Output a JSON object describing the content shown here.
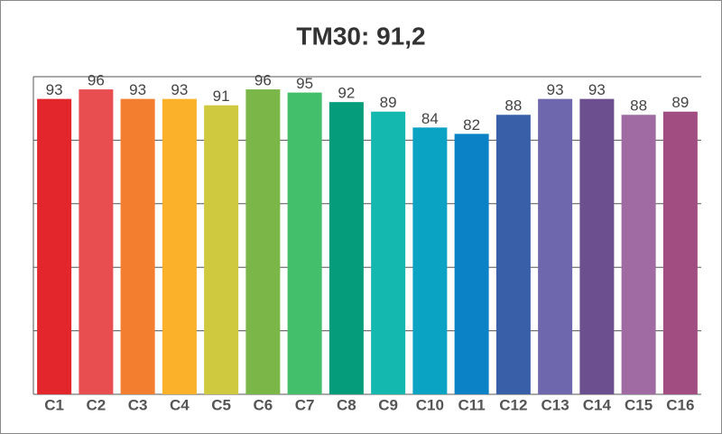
{
  "chart_data": {
    "type": "bar",
    "title": "TM30: 91,2",
    "categories": [
      "C1",
      "C2",
      "C3",
      "C4",
      "C5",
      "C6",
      "C7",
      "C8",
      "C9",
      "C10",
      "C11",
      "C12",
      "C13",
      "C14",
      "C15",
      "C16"
    ],
    "values": [
      93,
      96,
      93,
      93,
      91,
      96,
      95,
      92,
      89,
      84,
      82,
      88,
      93,
      93,
      88,
      89
    ],
    "colors": [
      "#e3262c",
      "#e84d50",
      "#f47e2f",
      "#fbb12a",
      "#cfc93f",
      "#7ab648",
      "#43be6b",
      "#049c7a",
      "#15b8ae",
      "#0ba3c4",
      "#0a82c5",
      "#3a5fa9",
      "#6e67ad",
      "#6b4f8e",
      "#a06ba3",
      "#a24d82"
    ],
    "ylim": [
      0,
      100
    ],
    "yticks": [
      0,
      20,
      40,
      60,
      80,
      100
    ],
    "grid": true
  }
}
